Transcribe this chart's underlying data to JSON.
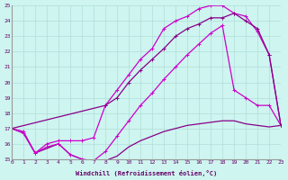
{
  "xlabel": "Windchill (Refroidissement éolien,°C)",
  "background_color": "#cef5f0",
  "grid_color": "#b0ddd8",
  "xlim": [
    0,
    23
  ],
  "ylim": [
    15,
    25
  ],
  "xticks": [
    0,
    1,
    2,
    3,
    4,
    5,
    6,
    7,
    8,
    9,
    10,
    11,
    12,
    13,
    14,
    15,
    16,
    17,
    18,
    19,
    20,
    21,
    22,
    23
  ],
  "yticks": [
    15,
    16,
    17,
    18,
    19,
    20,
    21,
    22,
    23,
    24,
    25
  ],
  "line1_x": [
    0,
    1,
    2,
    3,
    4,
    5,
    6,
    7,
    8,
    9,
    10,
    11,
    12,
    13,
    14,
    15,
    16,
    17,
    18,
    19,
    20,
    21,
    22,
    23
  ],
  "line1_y": [
    17.0,
    16.7,
    15.4,
    15.7,
    16.0,
    15.3,
    15.0,
    14.8,
    14.9,
    15.2,
    15.8,
    16.2,
    16.5,
    16.8,
    17.0,
    17.2,
    17.3,
    17.4,
    17.5,
    17.5,
    17.3,
    17.2,
    17.1,
    17.2
  ],
  "line2_x": [
    0,
    1,
    2,
    3,
    4,
    5,
    6,
    7,
    8,
    9,
    10,
    11,
    12,
    13,
    14,
    15,
    16,
    17,
    18,
    19,
    20,
    21,
    22,
    23
  ],
  "line2_y": [
    17.0,
    16.8,
    15.4,
    15.8,
    16.0,
    15.3,
    15.0,
    14.9,
    15.5,
    16.5,
    17.5,
    18.5,
    19.3,
    20.2,
    21.0,
    21.8,
    22.5,
    23.2,
    23.7,
    19.5,
    19.0,
    18.5,
    18.5,
    17.2
  ],
  "line3_x": [
    0,
    1,
    2,
    3,
    4,
    5,
    6,
    7,
    8,
    9,
    10,
    11,
    12,
    13,
    14,
    15,
    16,
    17,
    18,
    19,
    20,
    21,
    22,
    23
  ],
  "line3_y": [
    17.0,
    16.7,
    15.4,
    16.0,
    16.2,
    16.2,
    16.2,
    16.4,
    18.5,
    19.5,
    20.5,
    21.5,
    22.2,
    23.5,
    24.0,
    24.3,
    24.8,
    25.0,
    25.0,
    24.5,
    24.3,
    23.3,
    21.8,
    17.2
  ],
  "line4_x": [
    0,
    8,
    9,
    10,
    11,
    12,
    13,
    14,
    15,
    16,
    17,
    18,
    19,
    20,
    21,
    22,
    23
  ],
  "line4_y": [
    17.0,
    18.5,
    19.0,
    20.0,
    20.8,
    21.5,
    22.2,
    23.0,
    23.5,
    23.8,
    24.2,
    24.2,
    24.5,
    24.0,
    23.5,
    21.8,
    17.2
  ],
  "color_bright": "#cc00cc",
  "color_dark": "#880088",
  "marker": "+",
  "markersize": 3,
  "linewidth": 0.9
}
